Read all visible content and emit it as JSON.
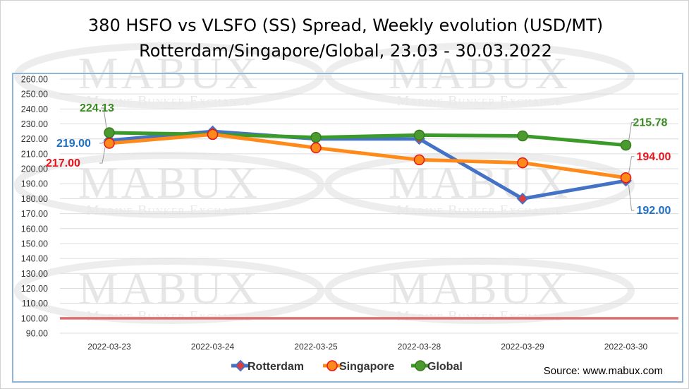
{
  "chart_data": {
    "type": "line",
    "title_line1": "380 HSFO vs VLSFO (SS) Spread, Weekly evolution (USD/MT)",
    "title_line2": "Rotterdam/Singapore/Global, 23.03 - 30.03.2022",
    "categories": [
      "2022-03-23",
      "2022-03-24",
      "2022-03-25",
      "2022-03-28",
      "2022-03-29",
      "2022-03-30"
    ],
    "ylim": [
      90,
      260
    ],
    "ytick_step": 10,
    "grid": true,
    "legend_position": "bottom",
    "reference_line": {
      "value": 100,
      "color": "#e36c6c"
    },
    "series": [
      {
        "name": "Rotterdam",
        "color": "#4472c4",
        "marker": "diamond",
        "marker_fill": "#e03c3c",
        "values": [
          219,
          225,
          220,
          220,
          180,
          192
        ]
      },
      {
        "name": "Singapore",
        "color": "#ff8a1a",
        "marker": "circle",
        "marker_fill": "#ff8a1a",
        "values": [
          217,
          223,
          214,
          206,
          204,
          194
        ]
      },
      {
        "name": "Global",
        "color": "#3a9a2a",
        "marker": "circle",
        "marker_fill": "#4a9a30",
        "values": [
          224.13,
          223,
          221,
          222.5,
          222,
          215.78
        ]
      }
    ],
    "annotations": [
      {
        "text": "224.13",
        "series": "Global",
        "index": 0,
        "color": "#3a8a22"
      },
      {
        "text": "219.00",
        "series": "Rotterdam",
        "index": 0,
        "color": "#1f6fc4"
      },
      {
        "text": "217.00",
        "series": "Singapore",
        "index": 0,
        "color": "#e8141c"
      },
      {
        "text": "215.78",
        "series": "Global",
        "index": 5,
        "color": "#3a8a22"
      },
      {
        "text": "194.00",
        "series": "Singapore",
        "index": 5,
        "color": "#e8141c"
      },
      {
        "text": "192.00",
        "series": "Rotterdam",
        "index": 5,
        "color": "#1f6fc4"
      }
    ]
  },
  "source": "Source: www.mabux.com",
  "watermark": {
    "brand": "MABUX",
    "tagline": "Marine Bunker Exchange"
  }
}
